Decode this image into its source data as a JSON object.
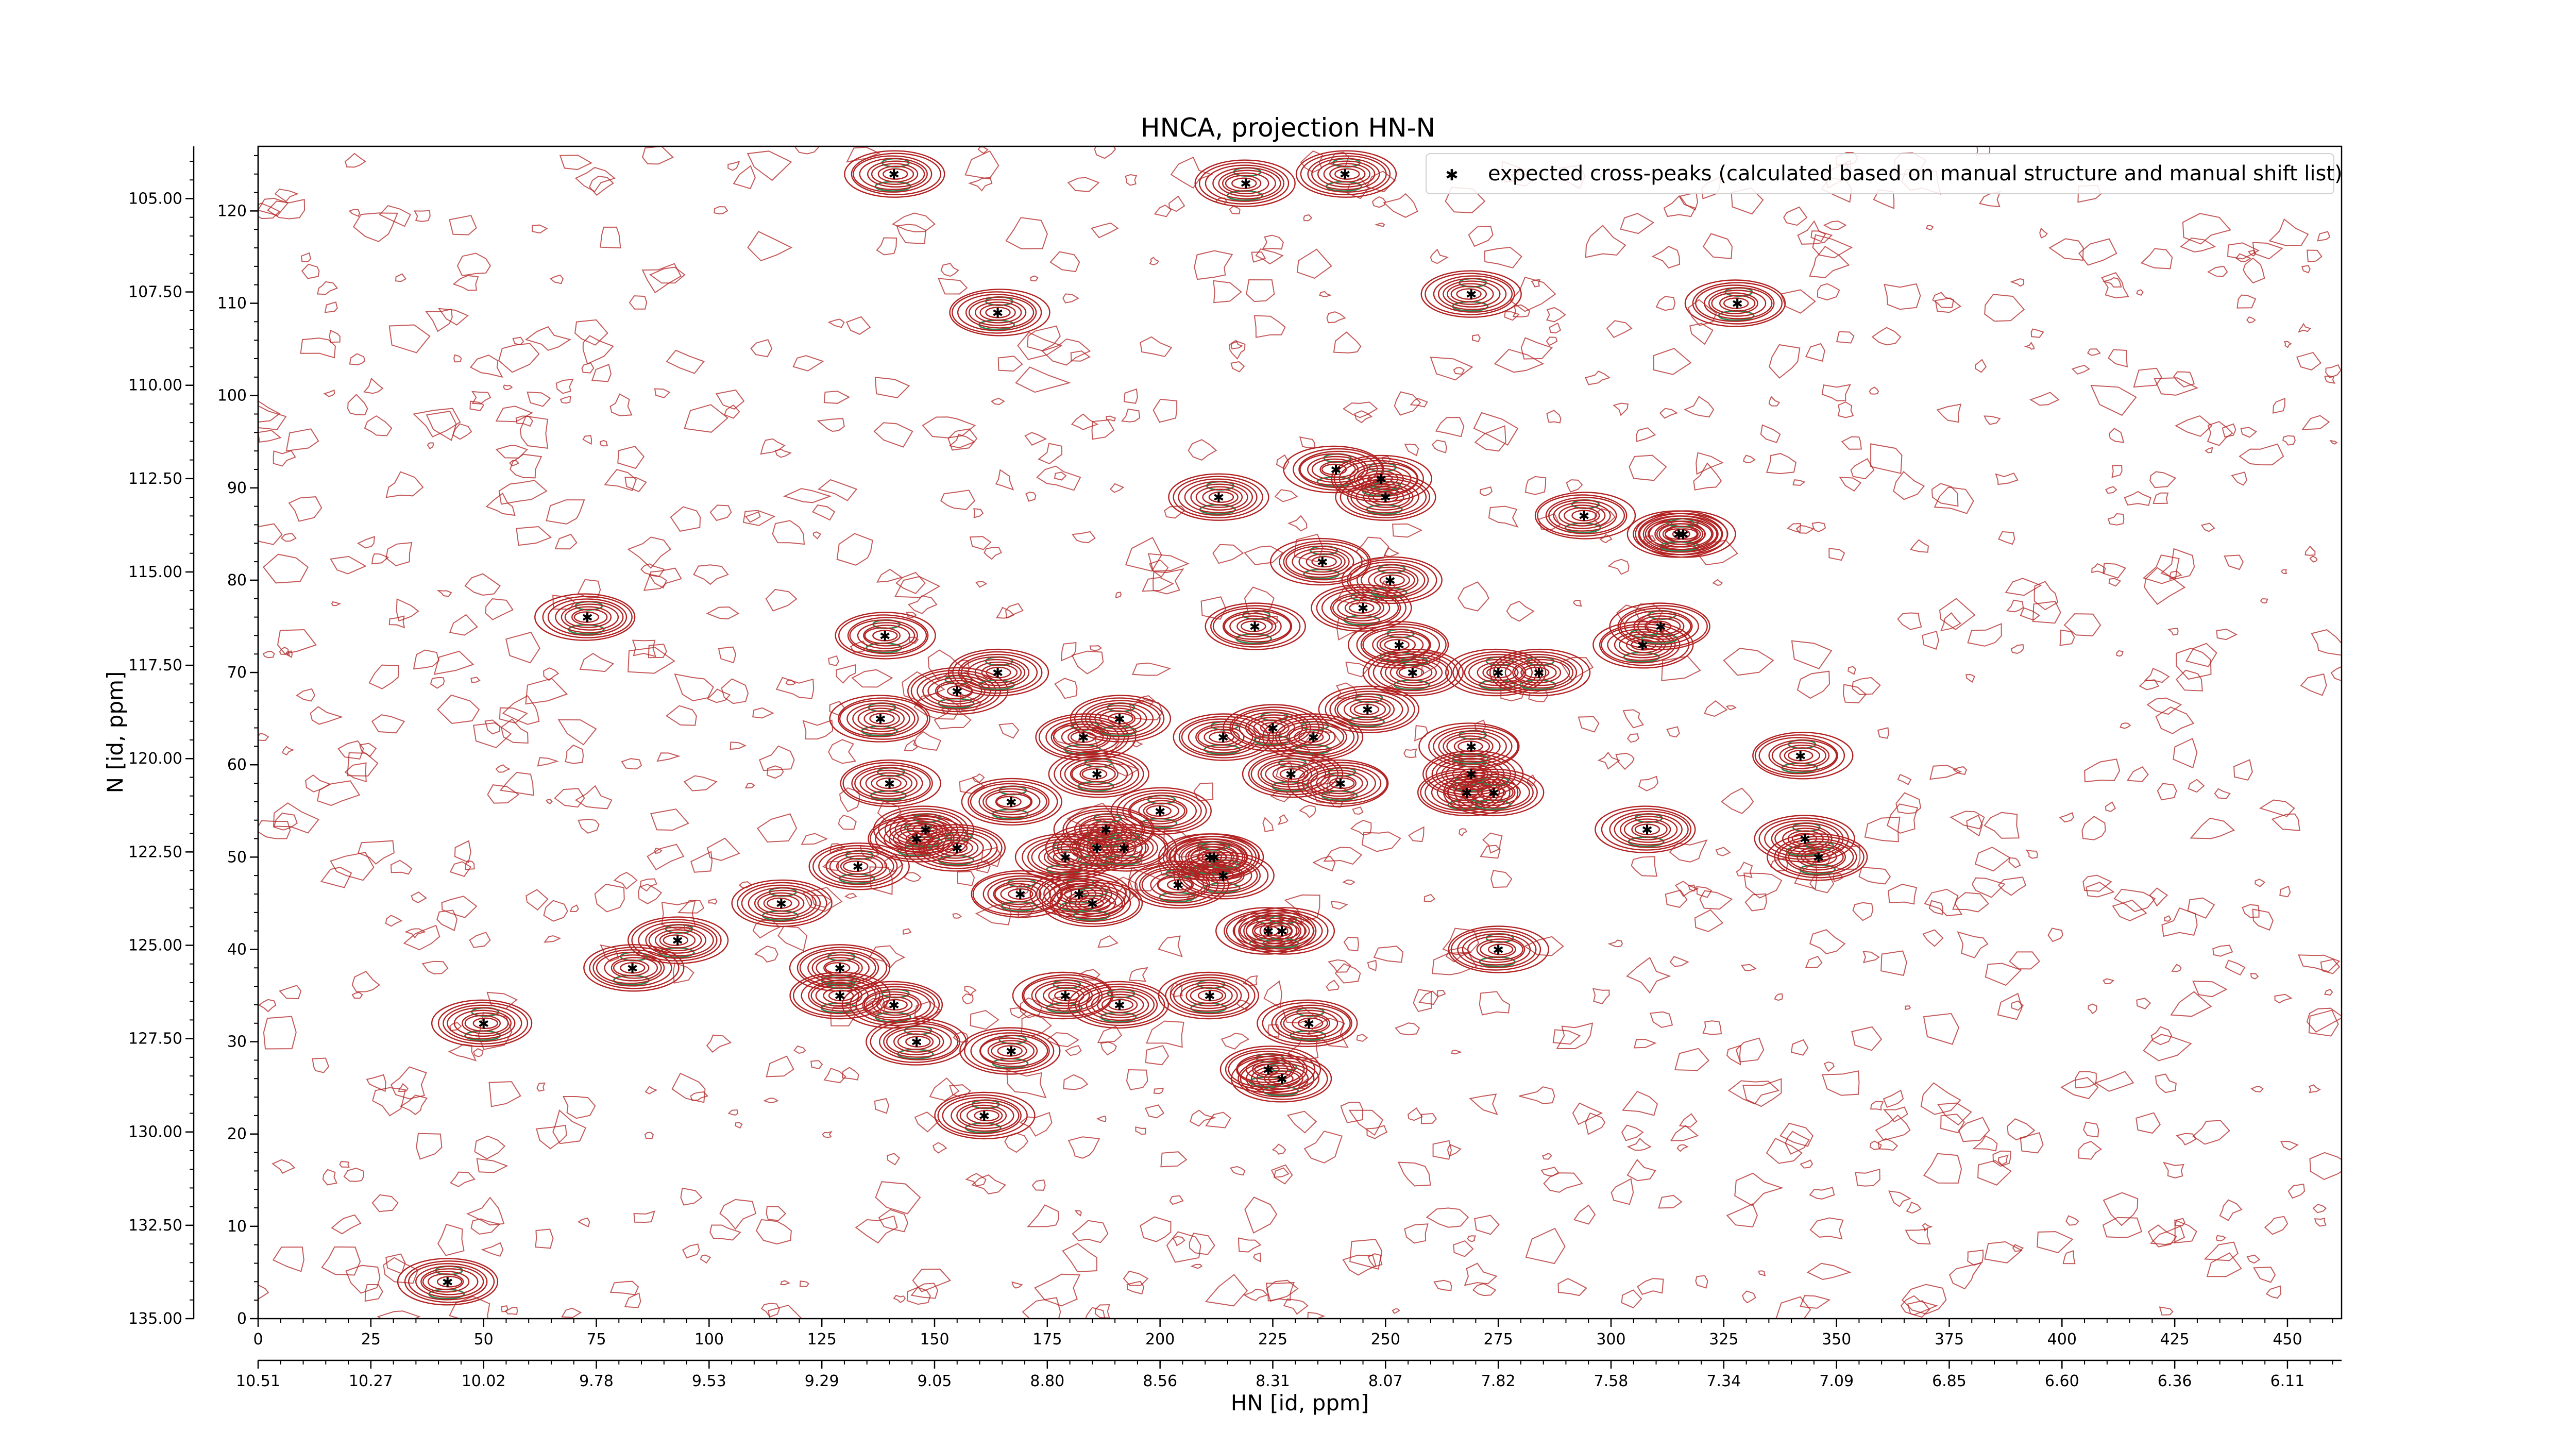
{
  "chart_data": {
    "type": "scatter",
    "title": "HNCA, projection HN-N",
    "xlabel": "HN [id, ppm]",
    "ylabel": "N [id, ppm]",
    "xlim_points": [
      0,
      462
    ],
    "ylim_points": [
      0,
      127
    ],
    "x_point_ticks": [
      0,
      25,
      50,
      75,
      100,
      125,
      150,
      175,
      200,
      225,
      250,
      275,
      300,
      325,
      350,
      375,
      400,
      425,
      450
    ],
    "y_point_ticks": [
      0,
      10,
      20,
      30,
      40,
      50,
      60,
      70,
      80,
      90,
      100,
      110,
      120
    ],
    "x_ppm_tick_labels": [
      "10.51",
      "10.27",
      "10.02",
      "9.78",
      "9.53",
      "9.29",
      "9.05",
      "8.80",
      "8.56",
      "8.31",
      "8.07",
      "7.82",
      "7.58",
      "7.34",
      "7.09",
      "6.85",
      "6.60",
      "6.36",
      "6.11"
    ],
    "y_ppm_tick_labels": [
      "105.00",
      "107.50",
      "110.00",
      "112.50",
      "115.00",
      "117.50",
      "120.00",
      "122.50",
      "125.00",
      "127.50",
      "130.00",
      "132.50",
      "135.00"
    ],
    "y_ppm_tick_positions": [
      105.0,
      107.5,
      110.0,
      112.5,
      115.0,
      117.5,
      120.0,
      122.5,
      125.0,
      127.5,
      130.0,
      132.5,
      135.0
    ],
    "y_ppm_range": [
      135.0,
      103.6
    ],
    "legend": {
      "position": "top-right",
      "entries": [
        "expected cross-peaks (calculated based on manual structure and manual shift list)"
      ]
    },
    "grid": false,
    "colors": {
      "contour": "#b22222",
      "negative_contour": "#2e8b57",
      "marker": "#0000ff"
    },
    "series": [
      {
        "name": "expected cross-peaks (calculated based on manual structure and manual shift list)",
        "x": [
          141,
          219,
          241,
          164,
          269,
          328,
          239,
          249,
          250,
          213,
          294,
          316,
          315,
          236,
          251,
          73,
          221,
          245,
          139,
          155,
          164,
          307,
          311,
          253,
          256,
          275,
          284,
          138,
          183,
          191,
          214,
          225,
          234,
          246,
          269,
          268,
          140,
          186,
          229,
          240,
          269,
          274,
          342,
          167,
          200,
          133,
          146,
          148,
          155,
          179,
          186,
          188,
          192,
          211,
          212,
          214,
          308,
          343,
          346,
          116,
          169,
          182,
          185,
          204,
          224,
          227,
          93,
          83,
          275,
          129,
          129,
          141,
          179,
          191,
          211,
          146,
          167,
          233,
          50,
          224,
          227,
          161,
          42
        ],
        "y": [
          124,
          123,
          124,
          109,
          111,
          110,
          92,
          91,
          89,
          89,
          87,
          85,
          85,
          82,
          80,
          76,
          75,
          77,
          74,
          68,
          70,
          73,
          75,
          73,
          70,
          70,
          70,
          65,
          63,
          65,
          63,
          64,
          63,
          66,
          59,
          57,
          58,
          59,
          59,
          58,
          62,
          57,
          61,
          56,
          55,
          49,
          52,
          53,
          51,
          50,
          51,
          53,
          51,
          50,
          50,
          48,
          53,
          52,
          50,
          45,
          46,
          46,
          45,
          47,
          42,
          42,
          41,
          38,
          40,
          38,
          35,
          34,
          35,
          34,
          35,
          30,
          29,
          32,
          32,
          27,
          26,
          22,
          4
        ]
      }
    ]
  }
}
